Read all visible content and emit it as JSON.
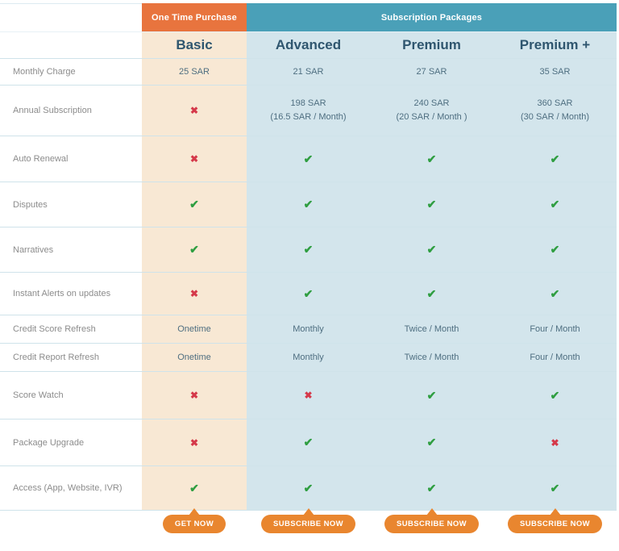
{
  "colors": {
    "one_time_header_bg": "#e8743e",
    "subscription_header_bg": "#4aa0b8",
    "basic_column_bg": "#f8e8d4",
    "subscription_column_bg": "#d3e5ec",
    "plan_name_text": "#2f566f",
    "value_text": "#4e6e80",
    "label_text": "#8c8c8c",
    "check_green": "#2f9e41",
    "cross_red": "#d5394a",
    "cta_button_bg": "#e9862f"
  },
  "icons": {
    "check": "✔",
    "cross": "✖"
  },
  "header": {
    "one_time_purchase": "One Time Purchase",
    "subscription_packages": "Subscription Packages"
  },
  "plans": [
    {
      "name": "Basic",
      "group": "One Time Purchase",
      "cta": "GET NOW"
    },
    {
      "name": "Advanced",
      "group": "Subscription Packages",
      "cta": "SUBSCRIBE NOW"
    },
    {
      "name": "Premium",
      "group": "Subscription Packages",
      "cta": "SUBSCRIBE NOW"
    },
    {
      "name": "Premium +",
      "group": "Subscription Packages",
      "cta": "SUBSCRIBE NOW"
    }
  ],
  "features": [
    {
      "label": "Monthly Charge",
      "values": [
        {
          "text": "25 SAR"
        },
        {
          "text": "21 SAR"
        },
        {
          "text": "27 SAR"
        },
        {
          "text": "35 SAR"
        }
      ]
    },
    {
      "label": "Annual Subscription",
      "values": [
        {
          "icon": "cross"
        },
        {
          "lines": [
            "198 SAR",
            "(16.5 SAR / Month)"
          ]
        },
        {
          "lines": [
            "240 SAR",
            "(20 SAR / Month )"
          ]
        },
        {
          "lines": [
            "360 SAR",
            "(30 SAR / Month)"
          ]
        }
      ]
    },
    {
      "label": "Auto Renewal",
      "values": [
        {
          "icon": "cross"
        },
        {
          "icon": "check"
        },
        {
          "icon": "check"
        },
        {
          "icon": "check"
        }
      ]
    },
    {
      "label": "Disputes",
      "values": [
        {
          "icon": "check"
        },
        {
          "icon": "check"
        },
        {
          "icon": "check"
        },
        {
          "icon": "check"
        }
      ]
    },
    {
      "label": "Narratives",
      "values": [
        {
          "icon": "check"
        },
        {
          "icon": "check"
        },
        {
          "icon": "check"
        },
        {
          "icon": "check"
        }
      ]
    },
    {
      "label": "Instant Alerts on updates",
      "values": [
        {
          "icon": "cross"
        },
        {
          "icon": "check"
        },
        {
          "icon": "check"
        },
        {
          "icon": "check"
        }
      ]
    },
    {
      "label": "Credit Score Refresh",
      "values": [
        {
          "text": "Onetime"
        },
        {
          "text": "Monthly"
        },
        {
          "text": "Twice / Month"
        },
        {
          "text": "Four / Month"
        }
      ]
    },
    {
      "label": "Credit Report Refresh",
      "values": [
        {
          "text": "Onetime"
        },
        {
          "text": "Monthly"
        },
        {
          "text": "Twice / Month"
        },
        {
          "text": "Four / Month"
        }
      ]
    },
    {
      "label": "Score Watch",
      "values": [
        {
          "icon": "cross"
        },
        {
          "icon": "cross"
        },
        {
          "icon": "check"
        },
        {
          "icon": "check"
        }
      ]
    },
    {
      "label": "Package Upgrade",
      "values": [
        {
          "icon": "cross"
        },
        {
          "icon": "check"
        },
        {
          "icon": "check"
        },
        {
          "icon": "cross"
        }
      ]
    },
    {
      "label": "Access (App, Website, IVR)",
      "values": [
        {
          "icon": "check"
        },
        {
          "icon": "check"
        },
        {
          "icon": "check"
        },
        {
          "icon": "check"
        }
      ]
    }
  ]
}
